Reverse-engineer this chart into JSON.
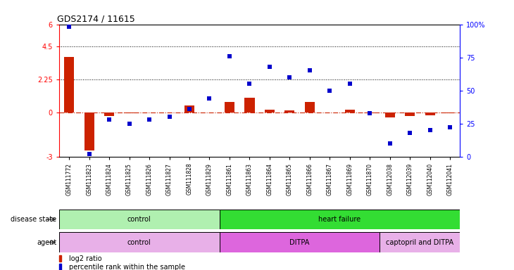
{
  "title": "GDS2174 / 11615",
  "samples": [
    "GSM111772",
    "GSM111823",
    "GSM111824",
    "GSM111825",
    "GSM111826",
    "GSM111827",
    "GSM111828",
    "GSM111829",
    "GSM111861",
    "GSM111863",
    "GSM111864",
    "GSM111865",
    "GSM111866",
    "GSM111867",
    "GSM111869",
    "GSM111870",
    "GSM112038",
    "GSM112039",
    "GSM112040",
    "GSM112041"
  ],
  "log2_ratio": [
    3.8,
    -2.6,
    -0.25,
    -0.05,
    0.0,
    0.0,
    0.5,
    0.0,
    0.7,
    1.0,
    0.2,
    0.15,
    0.7,
    0.0,
    0.2,
    -0.05,
    -0.35,
    -0.25,
    -0.2,
    -0.05
  ],
  "percentile": [
    98,
    2,
    28,
    25,
    28,
    30,
    36,
    44,
    76,
    55,
    68,
    60,
    65,
    50,
    55,
    33,
    10,
    18,
    20,
    22
  ],
  "disease_state": [
    {
      "label": "control",
      "start": 0,
      "end": 8,
      "color": "#b0f0b0"
    },
    {
      "label": "heart failure",
      "start": 8,
      "end": 20,
      "color": "#33dd33"
    }
  ],
  "agent": [
    {
      "label": "control",
      "start": 0,
      "end": 8,
      "color": "#e8b0e8"
    },
    {
      "label": "DITPA",
      "start": 8,
      "end": 16,
      "color": "#dd66dd"
    },
    {
      "label": "captopril and DITPA",
      "start": 16,
      "end": 20,
      "color": "#e8b0e8"
    }
  ],
  "ylim_left": [
    -3,
    6
  ],
  "ylim_right": [
    0,
    100
  ],
  "hlines": [
    2.25,
    4.5
  ],
  "bar_color": "#cc2200",
  "dot_color": "#0000cc",
  "dashed_line_color": "#cc2200",
  "background_color": "#ffffff",
  "left_yticks": [
    -3,
    0,
    2.25,
    4.5,
    6
  ],
  "left_yticklabels": [
    "-3",
    "0",
    "2.25",
    "4.5",
    "6"
  ],
  "right_yticks": [
    0,
    25,
    50,
    75,
    100
  ],
  "right_yticklabels": [
    "0",
    "25",
    "50",
    "75",
    "100%"
  ]
}
